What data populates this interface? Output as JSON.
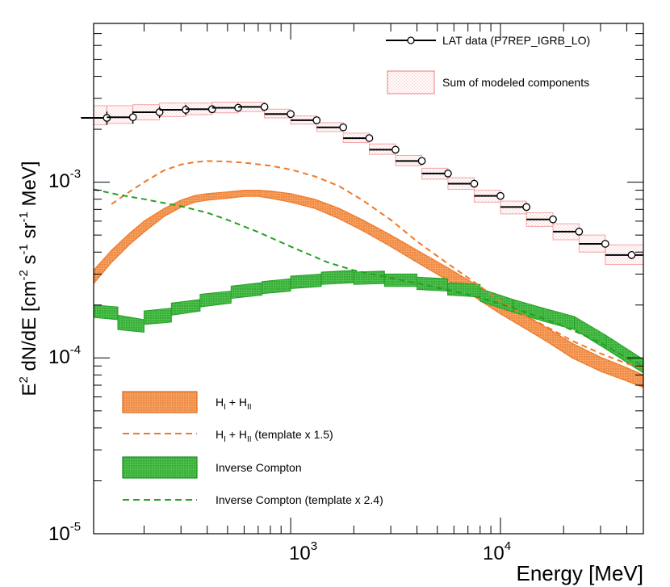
{
  "chart_data": {
    "type": "line",
    "xlabel": "Energy [MeV]",
    "ylabel_parts": {
      "e": "E",
      "e_sup": "2",
      "body": " dN/dE [cm",
      "cm_sup": "-2",
      "s": " s",
      "s_sup": "-1",
      "sr": " sr",
      "sr_sup": "-1",
      "mev": " MeV]"
    },
    "x_scale": "log",
    "y_scale": "log",
    "xlim": [
      115,
      48000
    ],
    "ylim": [
      1e-05,
      0.008
    ],
    "x_major_ticks": [
      {
        "value": 1000,
        "base": "10",
        "exp": "3"
      },
      {
        "value": 10000,
        "base": "10",
        "exp": "4"
      }
    ],
    "y_major_ticks": [
      {
        "value": 0.001,
        "base": "10",
        "exp": "-3"
      },
      {
        "value": 0.0001,
        "base": "10",
        "exp": "-4"
      },
      {
        "value": 1e-05,
        "base": "10",
        "exp": "-5"
      }
    ],
    "legend_placement": "top-right (data) and bottom-left (components)",
    "colors": {
      "data": "#000000",
      "sum": "#f08080",
      "hadronic": "#f07828",
      "ic": "#22a022"
    },
    "series": [
      {
        "name": "LAT data (P7REP_IGRB_LO)",
        "kind": "points",
        "x": [
          133,
          177,
          237,
          316,
          422,
          562,
          750,
          1000,
          1330,
          1780,
          2370,
          3160,
          4220,
          5620,
          7500,
          10000,
          13300,
          17800,
          23700,
          31600,
          42200
        ],
        "xerr_lo": [
          100,
          133,
          177,
          237,
          316,
          422,
          562,
          750,
          1000,
          1330,
          1780,
          2370,
          3160,
          4220,
          5620,
          7500,
          10000,
          13300,
          17800,
          23700,
          31600
        ],
        "xerr_hi": [
          133,
          177,
          237,
          316,
          422,
          562,
          750,
          1000,
          1330,
          1780,
          2370,
          3160,
          4220,
          5620,
          7500,
          10000,
          13300,
          17800,
          23700,
          31600,
          56200
        ],
        "y": [
          0.00232,
          0.00234,
          0.0025,
          0.00258,
          0.0026,
          0.00265,
          0.00268,
          0.00244,
          0.00225,
          0.00205,
          0.00178,
          0.00153,
          0.00132,
          0.00112,
          0.00098,
          0.000835,
          0.000722,
          0.000614,
          0.000523,
          0.000446,
          0.000385
        ],
        "yerr": [
          0.0002,
          0.00019,
          0.00018,
          0.00017,
          9e-05,
          8e-05,
          7e-05,
          6e-05,
          5e-05,
          5e-05,
          4e-05,
          4e-05,
          3e-05,
          3e-05,
          3e-05,
          2e-05,
          2e-05,
          2e-05,
          2e-05,
          2e-05,
          2e-05
        ]
      },
      {
        "name": "Sum of modeled components",
        "kind": "boxes",
        "x": [
          133,
          177,
          237,
          316,
          422,
          562,
          750,
          1000,
          1330,
          1780,
          2370,
          3160,
          4220,
          5620,
          7500,
          10000,
          13300,
          17800,
          23700,
          31600,
          42200
        ],
        "xerr_lo": [
          100,
          133,
          177,
          237,
          316,
          422,
          562,
          750,
          1000,
          1330,
          1780,
          2370,
          3160,
          4220,
          5620,
          7500,
          10000,
          13300,
          17800,
          23700,
          31600
        ],
        "xerr_hi": [
          133,
          177,
          237,
          316,
          422,
          562,
          750,
          1000,
          1330,
          1780,
          2370,
          3160,
          4220,
          5620,
          7500,
          10000,
          13300,
          17800,
          23700,
          31600,
          56200
        ],
        "y_lo": [
          0.00212,
          0.00216,
          0.00226,
          0.00236,
          0.00242,
          0.00248,
          0.00252,
          0.00232,
          0.00214,
          0.00194,
          0.00168,
          0.00144,
          0.00124,
          0.00104,
          0.00091,
          0.00077,
          0.00066,
          0.00056,
          0.00047,
          0.0004,
          0.00034
        ],
        "y_hi": [
          0.00272,
          0.00272,
          0.00276,
          0.00282,
          0.00282,
          0.00285,
          0.00285,
          0.0026,
          0.00238,
          0.00218,
          0.0019,
          0.00165,
          0.00142,
          0.0012,
          0.00106,
          0.0009,
          0.00078,
          0.00067,
          0.00058,
          0.0005,
          0.00044
        ]
      },
      {
        "name": "H_I + H_II",
        "kind": "band",
        "x": [
          115,
          140,
          170,
          200,
          250,
          300,
          350,
          400,
          500,
          600,
          700,
          800,
          1000,
          1300,
          1700,
          2200,
          3000,
          4000,
          5500,
          7500,
          10000,
          13000,
          17000,
          22000,
          30000,
          40000,
          48000
        ],
        "y_lo": [
          0.000265,
          0.00035,
          0.00044,
          0.00052,
          0.00064,
          0.00072,
          0.00077,
          0.00079,
          0.00081,
          0.00083,
          0.00083,
          0.00081,
          0.00077,
          0.00071,
          0.00062,
          0.00053,
          0.00043,
          0.00035,
          0.00028,
          0.000223,
          0.000178,
          0.000148,
          0.000122,
          0.0001,
          8.4e-05,
          7.4e-05,
          6.8e-05
        ],
        "y_hi": [
          0.000315,
          0.00041,
          0.00051,
          0.0006,
          0.00071,
          0.00079,
          0.00084,
          0.00086,
          0.00088,
          0.0009,
          0.0009,
          0.00089,
          0.00086,
          0.0008,
          0.00071,
          0.00061,
          0.0005,
          0.00041,
          0.00033,
          0.000265,
          0.000213,
          0.000176,
          0.000146,
          0.000121,
          0.000101,
          8.8e-05,
          8e-05
        ]
      },
      {
        "name": "H_I + H_II (template x 1.5)",
        "kind": "dashed",
        "x": [
          140,
          170,
          200,
          250,
          300,
          350,
          400,
          500,
          600,
          800,
          1000,
          1300,
          1700,
          2200,
          3000,
          4000,
          5500,
          7500,
          10000,
          13000,
          17000,
          22000,
          30000,
          40000,
          48000
        ],
        "y": [
          0.00075,
          0.00088,
          0.001,
          0.00117,
          0.00126,
          0.0013,
          0.00132,
          0.00131,
          0.00129,
          0.00124,
          0.00118,
          0.00108,
          0.00095,
          0.00079,
          0.00061,
          0.00046,
          0.00035,
          0.00027,
          0.00021,
          0.000175,
          0.000148,
          0.000125,
          0.000106,
          9.3e-05,
          8.7e-05
        ]
      },
      {
        "name": "Inverse Compton",
        "kind": "bands_binned",
        "bins": [
          {
            "x0": 115,
            "x1": 150,
            "lo0": 0.00017,
            "hi0": 0.0002,
            "lo1": 0.000165,
            "hi1": 0.000195
          },
          {
            "x0": 150,
            "x1": 200,
            "lo0": 0.000145,
            "hi0": 0.000175,
            "lo1": 0.00014,
            "hi1": 0.000165
          },
          {
            "x0": 200,
            "x1": 270,
            "lo0": 0.000155,
            "hi0": 0.000185,
            "lo1": 0.00016,
            "hi1": 0.000192
          },
          {
            "x0": 270,
            "x1": 370,
            "lo0": 0.000175,
            "hi0": 0.000205,
            "lo1": 0.000185,
            "hi1": 0.000215
          },
          {
            "x0": 370,
            "x1": 520,
            "lo0": 0.000195,
            "hi0": 0.00023,
            "lo1": 0.000205,
            "hi1": 0.00024
          },
          {
            "x0": 520,
            "x1": 730,
            "lo0": 0.000218,
            "hi0": 0.000256,
            "lo1": 0.000228,
            "hi1": 0.000268
          },
          {
            "x0": 730,
            "x1": 1000,
            "lo0": 0.000232,
            "hi0": 0.000272,
            "lo1": 0.00024,
            "hi1": 0.000282
          },
          {
            "x0": 1000,
            "x1": 1400,
            "lo0": 0.000248,
            "hi0": 0.000292,
            "lo1": 0.000255,
            "hi1": 0.0003
          },
          {
            "x0": 1400,
            "x1": 2000,
            "lo0": 0.000262,
            "hi0": 0.000308,
            "lo1": 0.000268,
            "hi1": 0.000315
          },
          {
            "x0": 2000,
            "x1": 2800,
            "lo0": 0.000262,
            "hi0": 0.000308,
            "lo1": 0.000265,
            "hi1": 0.000312
          },
          {
            "x0": 2800,
            "x1": 4000,
            "lo0": 0.000255,
            "hi0": 0.0003,
            "lo1": 0.000255,
            "hi1": 0.0003
          },
          {
            "x0": 4000,
            "x1": 5600,
            "lo0": 0.000245,
            "hi0": 0.000288,
            "lo1": 0.00024,
            "hi1": 0.000282
          },
          {
            "x0": 5600,
            "x1": 8000,
            "lo0": 0.000228,
            "hi0": 0.000268,
            "lo1": 0.000222,
            "hi1": 0.000262
          },
          {
            "x0": 8000,
            "x1": 11500,
            "lo0": 0.00021,
            "hi0": 0.000248,
            "lo1": 0.000182,
            "hi1": 0.000215
          },
          {
            "x0": 11500,
            "x1": 16000,
            "lo0": 0.000182,
            "hi0": 0.000215,
            "lo1": 0.000162,
            "hi1": 0.000192
          },
          {
            "x0": 16000,
            "x1": 22500,
            "lo0": 0.000162,
            "hi0": 0.000192,
            "lo1": 0.000145,
            "hi1": 0.000172
          },
          {
            "x0": 22500,
            "x1": 32000,
            "lo0": 0.000145,
            "hi0": 0.000172,
            "lo1": 0.000112,
            "hi1": 0.000134
          },
          {
            "x0": 32000,
            "x1": 48000,
            "lo0": 0.000112,
            "hi0": 0.000134,
            "lo1": 8.2e-05,
            "hi1": 9.8e-05
          }
        ]
      },
      {
        "name": "Inverse Compton (template x 2.4)",
        "kind": "dashed",
        "x": [
          115,
          150,
          200,
          250,
          300,
          400,
          500,
          700,
          1000,
          1500,
          2000,
          3000,
          4000,
          5500,
          7500,
          10000,
          13000,
          17000,
          22000,
          30000,
          40000,
          48000
        ],
        "y": [
          0.00091,
          0.00085,
          0.0008,
          0.00076,
          0.00073,
          0.00067,
          0.00061,
          0.00052,
          0.00043,
          0.00035,
          0.000315,
          0.000285,
          0.000266,
          0.000245,
          0.000225,
          0.000203,
          0.000183,
          0.000163,
          0.000144,
          0.000122,
          0.0001,
          9e-05
        ]
      }
    ]
  },
  "legend_top": {
    "data_label": "LAT data (P7REP_IGRB_LO)",
    "sum_label": "Sum of modeled components"
  },
  "legend_bottom": {
    "h_label_main": "H",
    "h_sub_1": "I",
    "h_plus": " + H",
    "h_sub_2": "II",
    "h_tmpl_main": "H",
    "h_tmpl_sub_1": "I",
    "h_tmpl_plus": " + H",
    "h_tmpl_sub_2": "II",
    "h_tmpl_suffix": "  (template x 1.5)",
    "ic_label": "Inverse Compton",
    "ic_tmpl_label": "Inverse Compton  (template x 2.4)"
  }
}
